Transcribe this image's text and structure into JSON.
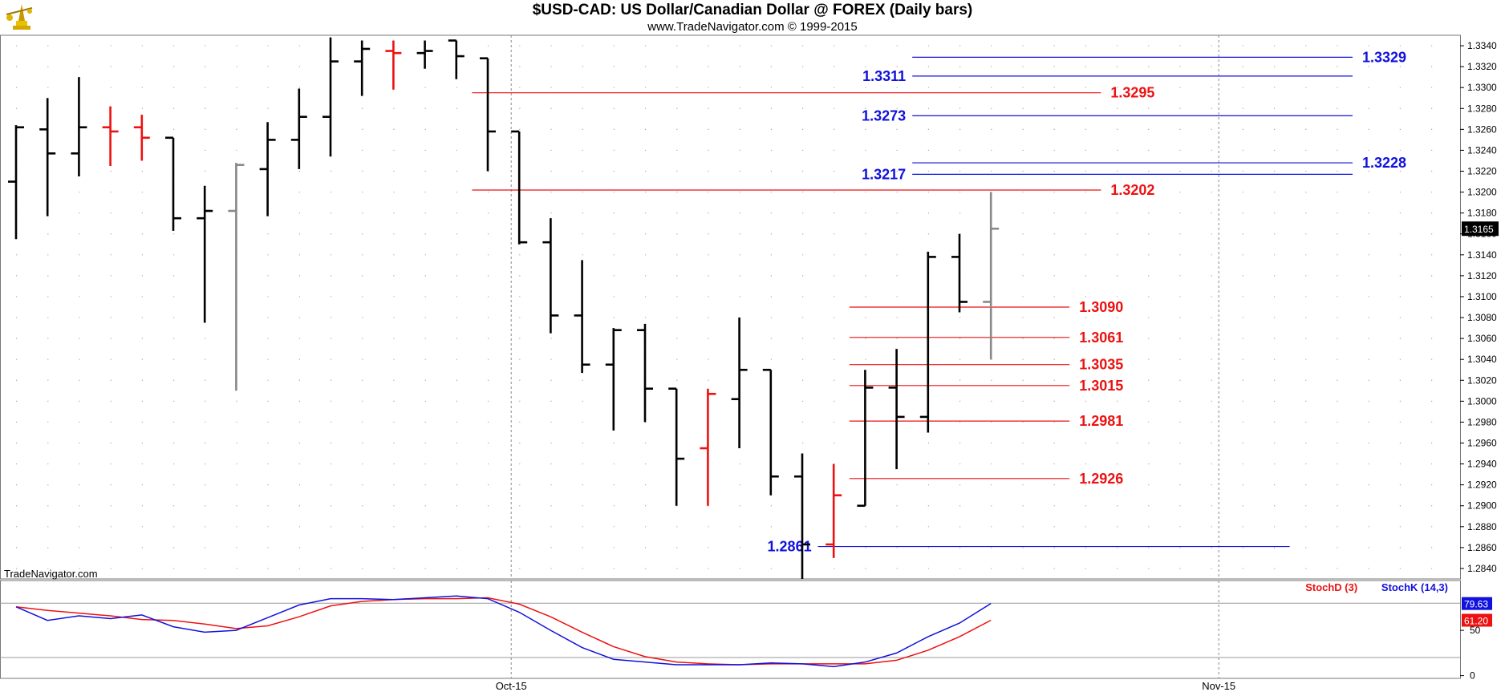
{
  "header": {
    "title": "$USD-CAD:  US Dollar/Canadian Dollar @ FOREX  (Daily bars)",
    "subtitle": "www.TradeNavigator.com © 1999-2015",
    "watermark": "TradeNavigator.com"
  },
  "colors": {
    "up_bar": "#000000",
    "down_bar": "#ee1111",
    "neutral_bar": "#888888",
    "support_resistance_red": "#ee1111",
    "projection_blue": "#1111dd",
    "stoch_d": "#ee1111",
    "stoch_k": "#1111dd",
    "grid_dot": "#aaaaaa"
  },
  "chart_data": [
    {
      "type": "ohlc",
      "name": "price",
      "ylim": [
        1.283,
        1.335
      ],
      "xlim": [
        -0.5,
        46
      ],
      "ytick_values": [
        1.284,
        1.286,
        1.288,
        1.29,
        1.292,
        1.294,
        1.296,
        1.298,
        1.3,
        1.302,
        1.304,
        1.306,
        1.308,
        1.31,
        1.312,
        1.314,
        1.316,
        1.318,
        1.32,
        1.322,
        1.324,
        1.326,
        1.328,
        1.33,
        1.332,
        1.334
      ],
      "ytick_labels": [
        "1.2840",
        "1.2860",
        "1.2880",
        "1.2900",
        "1.2920",
        "1.2940",
        "1.2960",
        "1.2980",
        "1.3000",
        "1.3020",
        "1.3040",
        "1.3060",
        "1.3080",
        "1.3100",
        "1.3120",
        "1.3140",
        "1.3160",
        "1.3180",
        "1.3200",
        "1.3220",
        "1.3240",
        "1.3260",
        "1.3280",
        "1.3300",
        "1.3320",
        "1.3340"
      ],
      "x_ticks": [
        {
          "index": 16,
          "label": "Oct-15"
        },
        {
          "index": 38.5,
          "label": "Nov-15"
        }
      ],
      "last_value": "1.3165",
      "bars": [
        {
          "o": 1.321,
          "h": 1.3264,
          "l": 1.3155,
          "c": 1.3262,
          "color": "up"
        },
        {
          "o": 1.326,
          "h": 1.329,
          "l": 1.3177,
          "c": 1.3237,
          "color": "up"
        },
        {
          "o": 1.3237,
          "h": 1.331,
          "l": 1.3215,
          "c": 1.3262,
          "color": "up"
        },
        {
          "o": 1.3262,
          "h": 1.3282,
          "l": 1.3225,
          "c": 1.3258,
          "color": "down"
        },
        {
          "o": 1.3262,
          "h": 1.3274,
          "l": 1.323,
          "c": 1.3252,
          "color": "down"
        },
        {
          "o": 1.3252,
          "h": 1.3252,
          "l": 1.3163,
          "c": 1.3175,
          "color": "up"
        },
        {
          "o": 1.3175,
          "h": 1.3206,
          "l": 1.3075,
          "c": 1.3182,
          "color": "up"
        },
        {
          "o": 1.3182,
          "h": 1.3228,
          "l": 1.301,
          "c": 1.3226,
          "color": "neutral"
        },
        {
          "o": 1.3222,
          "h": 1.3267,
          "l": 1.3177,
          "c": 1.325,
          "color": "up"
        },
        {
          "o": 1.325,
          "h": 1.3299,
          "l": 1.3222,
          "c": 1.3272,
          "color": "up"
        },
        {
          "o": 1.3272,
          "h": 1.3348,
          "l": 1.3234,
          "c": 1.3325,
          "color": "up"
        },
        {
          "o": 1.3325,
          "h": 1.3345,
          "l": 1.3292,
          "c": 1.3337,
          "color": "up"
        },
        {
          "o": 1.3335,
          "h": 1.3345,
          "l": 1.3298,
          "c": 1.3333,
          "color": "down"
        },
        {
          "o": 1.3333,
          "h": 1.3345,
          "l": 1.3318,
          "c": 1.3335,
          "color": "up"
        },
        {
          "o": 1.3345,
          "h": 1.3345,
          "l": 1.3308,
          "c": 1.333,
          "color": "up"
        },
        {
          "o": 1.3328,
          "h": 1.3328,
          "l": 1.322,
          "c": 1.3258,
          "color": "up"
        },
        {
          "o": 1.3258,
          "h": 1.3258,
          "l": 1.315,
          "c": 1.3152,
          "color": "up"
        },
        {
          "o": 1.3152,
          "h": 1.3175,
          "l": 1.3065,
          "c": 1.3082,
          "color": "up"
        },
        {
          "o": 1.3082,
          "h": 1.3135,
          "l": 1.3027,
          "c": 1.3035,
          "color": "up"
        },
        {
          "o": 1.3035,
          "h": 1.307,
          "l": 1.2972,
          "c": 1.3068,
          "color": "up"
        },
        {
          "o": 1.3068,
          "h": 1.3074,
          "l": 1.298,
          "c": 1.3012,
          "color": "up"
        },
        {
          "o": 1.3012,
          "h": 1.3012,
          "l": 1.29,
          "c": 1.2945,
          "color": "up"
        },
        {
          "o": 1.2955,
          "h": 1.3012,
          "l": 1.29,
          "c": 1.3007,
          "color": "down"
        },
        {
          "o": 1.3002,
          "h": 1.308,
          "l": 1.2955,
          "c": 1.303,
          "color": "up"
        },
        {
          "o": 1.303,
          "h": 1.303,
          "l": 1.291,
          "c": 1.2928,
          "color": "up"
        },
        {
          "o": 1.2928,
          "h": 1.295,
          "l": 1.283,
          "c": 1.2863,
          "color": "up"
        },
        {
          "o": 1.2863,
          "h": 1.294,
          "l": 1.285,
          "c": 1.291,
          "color": "down"
        },
        {
          "o": 1.29,
          "h": 1.303,
          "l": 1.29,
          "c": 1.3013,
          "color": "up"
        },
        {
          "o": 1.3013,
          "h": 1.305,
          "l": 1.2935,
          "c": 1.2985,
          "color": "up"
        },
        {
          "o": 1.2985,
          "h": 1.3143,
          "l": 1.297,
          "c": 1.3138,
          "color": "up"
        },
        {
          "o": 1.3138,
          "h": 1.316,
          "l": 1.3085,
          "c": 1.3095,
          "color": "up"
        },
        {
          "o": 1.3095,
          "h": 1.32,
          "l": 1.304,
          "c": 1.3165,
          "color": "neutral"
        }
      ],
      "levels": [
        {
          "value": "1.3329",
          "color": "blue",
          "x_from": 28.5,
          "x_to": 42.5,
          "label_side": "right"
        },
        {
          "value": "1.3311",
          "color": "blue",
          "x_from": 28.5,
          "x_to": 42.5,
          "label_side": "left"
        },
        {
          "value": "1.3295",
          "color": "red",
          "x_from": 14.5,
          "x_to": 34.5,
          "label_side": "right"
        },
        {
          "value": "1.3273",
          "color": "blue",
          "x_from": 28.5,
          "x_to": 42.5,
          "label_side": "left"
        },
        {
          "value": "1.3228",
          "color": "blue",
          "x_from": 28.5,
          "x_to": 42.5,
          "label_side": "right"
        },
        {
          "value": "1.3217",
          "color": "blue",
          "x_from": 28.5,
          "x_to": 42.5,
          "label_side": "left"
        },
        {
          "value": "1.3202",
          "color": "red",
          "x_from": 14.5,
          "x_to": 34.5,
          "label_side": "right"
        },
        {
          "value": "1.3090",
          "color": "red",
          "x_from": 26.5,
          "x_to": 33.5,
          "label_side": "right"
        },
        {
          "value": "1.3061",
          "color": "red",
          "x_from": 26.5,
          "x_to": 33.5,
          "label_side": "right"
        },
        {
          "value": "1.3035",
          "color": "red",
          "x_from": 26.5,
          "x_to": 33.5,
          "label_side": "right"
        },
        {
          "value": "1.3015",
          "color": "red",
          "x_from": 26.5,
          "x_to": 33.5,
          "label_side": "right"
        },
        {
          "value": "1.2981",
          "color": "red",
          "x_from": 26.5,
          "x_to": 33.5,
          "label_side": "right"
        },
        {
          "value": "1.2926",
          "color": "red",
          "x_from": 26.5,
          "x_to": 33.5,
          "label_side": "right"
        },
        {
          "value": "1.2861",
          "color": "blue",
          "x_from": 25.5,
          "x_to": 40.5,
          "label_side": "left"
        }
      ]
    },
    {
      "type": "line",
      "name": "stochastic",
      "ylim": [
        -3,
        105
      ],
      "ytick_values": [
        0,
        50
      ],
      "ytick_labels": [
        "0",
        "50"
      ],
      "ref_lines": [
        20,
        80
      ],
      "legend": [
        {
          "label": "StochD (3)",
          "color": "red"
        },
        {
          "label": "StochK (14,3)",
          "color": "blue"
        }
      ],
      "series": [
        {
          "label": "StochK (14,3)",
          "last": "79.63",
          "values": [
            76,
            61,
            66,
            63,
            67,
            54,
            48,
            50,
            64,
            78,
            85,
            85,
            84,
            86,
            88,
            85,
            70,
            50,
            31,
            18,
            15,
            12,
            12,
            12,
            14,
            13,
            10,
            15,
            25,
            43,
            58,
            79.63
          ]
        },
        {
          "label": "StochD (3)",
          "last": "61.20",
          "values": [
            76,
            72,
            69,
            66,
            62,
            61,
            57,
            52,
            55,
            65,
            77,
            82,
            84,
            85,
            85,
            86,
            79,
            65,
            48,
            32,
            21,
            15,
            13,
            12,
            13,
            13,
            13,
            13,
            17,
            28,
            43,
            61.2
          ]
        }
      ]
    }
  ]
}
